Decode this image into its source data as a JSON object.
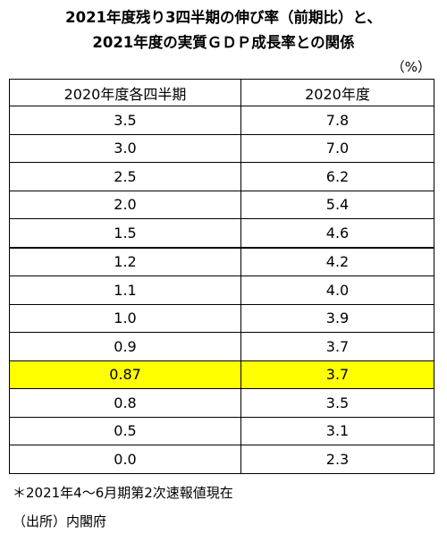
{
  "header": {
    "title_line1": "2021年度残り3四半期の伸び率（前期比）と、",
    "title_line2": "2021年度の実質ＧＤＰ成長率との関係",
    "unit": "（%）"
  },
  "table": {
    "columns": [
      "2020年度各四半期",
      "2020年度"
    ],
    "rows": [
      [
        "3.5",
        "7.8"
      ],
      [
        "3.0",
        "7.0"
      ],
      [
        "2.5",
        "6.2"
      ],
      [
        "2.0",
        "5.4"
      ],
      [
        "1.5",
        "4.6"
      ],
      [
        "1.2",
        "4.2"
      ],
      [
        "1.1",
        "4.0"
      ],
      [
        "1.0",
        "3.9"
      ],
      [
        "0.9",
        "3.7"
      ],
      [
        "0.87",
        "3.7"
      ],
      [
        "0.8",
        "3.5"
      ],
      [
        "0.5",
        "3.1"
      ],
      [
        "0.0",
        "2.3"
      ]
    ]
  },
  "notes": [
    "＊2021年4～6月期第2次速報値現在",
    "（出所）内閣府"
  ]
}
